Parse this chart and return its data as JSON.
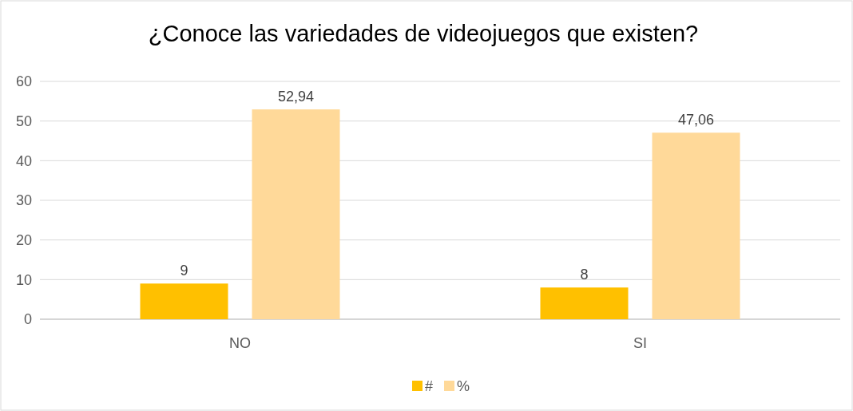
{
  "chart_data": {
    "type": "bar",
    "title": "¿Conoce las variedades de videojuegos que existen?",
    "categories": [
      "NO",
      "SI"
    ],
    "series": [
      {
        "name": "#",
        "color": "#ffc000",
        "values": [
          9,
          8
        ],
        "value_labels": [
          "9",
          "8"
        ]
      },
      {
        "name": "%",
        "color": "#ffd999",
        "values": [
          52.94,
          47.06
        ],
        "value_labels": [
          "52,94",
          "47,06"
        ]
      }
    ],
    "ylim": [
      0,
      60
    ],
    "yticks": [
      0,
      10,
      20,
      30,
      40,
      50,
      60
    ],
    "grid": "y",
    "legend": "bottom"
  }
}
